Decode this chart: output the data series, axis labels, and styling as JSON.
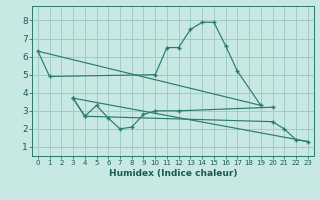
{
  "background_color": "#c8e8e4",
  "grid_color": "#a0ccc8",
  "line_color": "#2a7a70",
  "xlabel": "Humidex (Indice chaleur)",
  "xlim": [
    -0.5,
    23.5
  ],
  "ylim": [
    0.5,
    8.8
  ],
  "xticks": [
    0,
    1,
    2,
    3,
    4,
    5,
    6,
    7,
    8,
    9,
    10,
    11,
    12,
    13,
    14,
    15,
    16,
    17,
    18,
    19,
    20,
    21,
    22,
    23
  ],
  "yticks": [
    1,
    2,
    3,
    4,
    5,
    6,
    7,
    8
  ],
  "curve1_x": [
    0,
    1,
    10,
    11,
    12,
    13,
    14,
    15,
    16,
    17,
    19
  ],
  "curve1_y": [
    6.3,
    4.9,
    5.0,
    6.5,
    6.5,
    7.5,
    7.9,
    7.9,
    6.6,
    5.2,
    3.3
  ],
  "curve2_x": [
    3,
    4,
    5,
    6,
    7,
    8,
    9,
    10,
    12,
    20
  ],
  "curve2_y": [
    3.7,
    2.7,
    3.3,
    2.6,
    2.0,
    2.1,
    2.8,
    3.0,
    3.0,
    3.2
  ],
  "curve3_x": [
    3,
    4,
    20,
    21,
    22,
    23
  ],
  "curve3_y": [
    3.7,
    2.7,
    2.4,
    2.0,
    1.4,
    1.3
  ],
  "trend1_x": [
    0,
    19
  ],
  "trend1_y": [
    6.3,
    3.3
  ],
  "trend2_x": [
    3,
    23
  ],
  "trend2_y": [
    3.7,
    1.3
  ]
}
